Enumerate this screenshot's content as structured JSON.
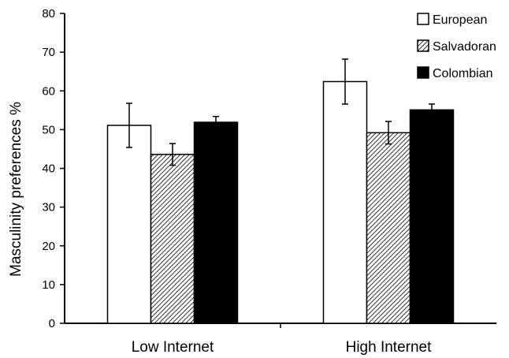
{
  "chart_data": {
    "type": "bar",
    "title": "",
    "xlabel": "",
    "ylabel": "Masculinity preferences %",
    "ylim": [
      0,
      80
    ],
    "yticks": [
      0,
      10,
      20,
      30,
      40,
      50,
      60,
      70,
      80
    ],
    "grid": false,
    "legend_position": "top-right",
    "categories": [
      "Low Internet",
      "High Internet"
    ],
    "series": [
      {
        "name": "European",
        "fill": "white",
        "values": [
          51.1,
          62.4
        ],
        "error": [
          5.7,
          5.8
        ]
      },
      {
        "name": "Salvadoran",
        "fill": "hatched",
        "values": [
          43.6,
          49.2
        ],
        "error": [
          2.8,
          2.9
        ]
      },
      {
        "name": "Colombian",
        "fill": "black",
        "values": [
          51.9,
          55.1
        ],
        "error": [
          1.5,
          1.5
        ]
      }
    ]
  }
}
